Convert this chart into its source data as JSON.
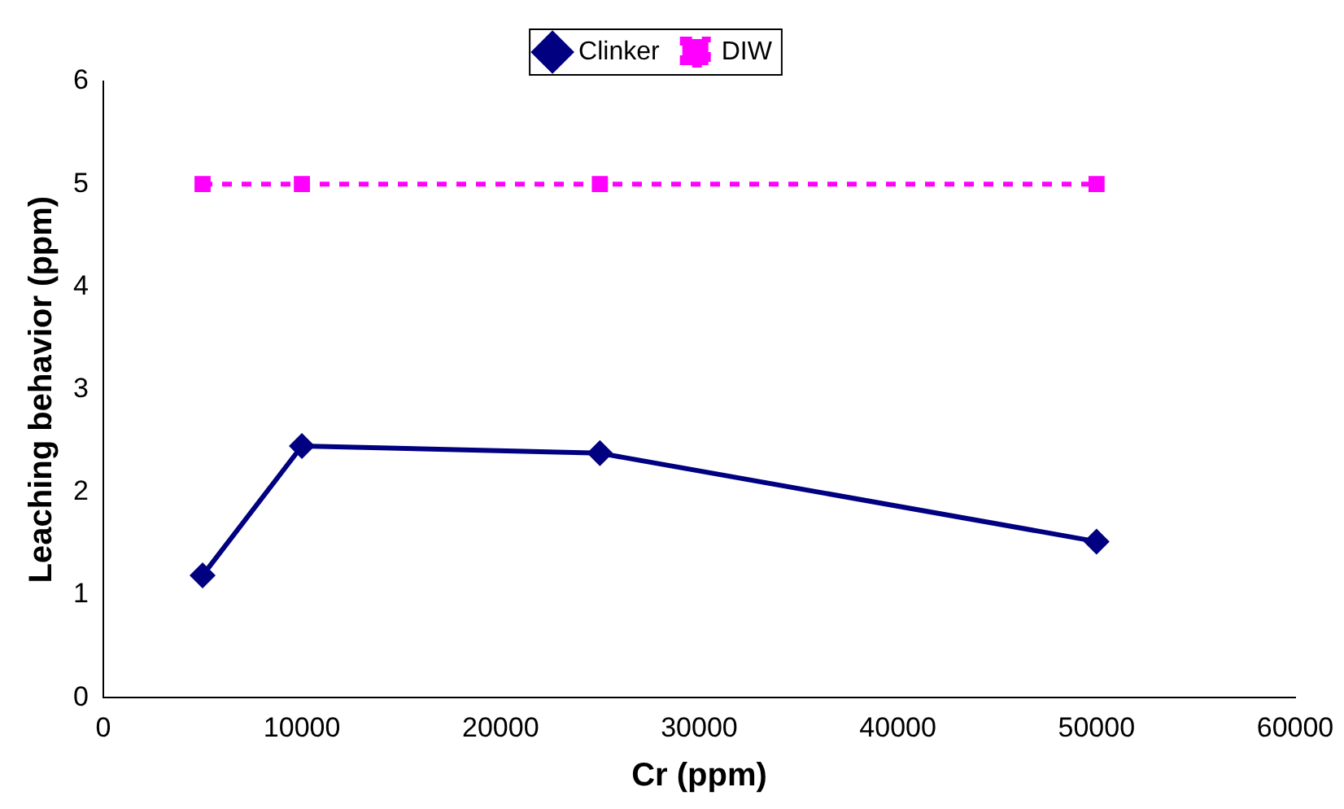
{
  "chart_data": {
    "type": "line",
    "xlabel": "Cr (ppm)",
    "ylabel": "Leaching behavior (ppm)",
    "x": [
      5000,
      10000,
      25000,
      50000
    ],
    "series": [
      {
        "name": "Clinker",
        "color": "#000080",
        "values": [
          1.19,
          2.45,
          2.38,
          1.52
        ],
        "marker": "diamond",
        "line_style": "solid"
      },
      {
        "name": "DIW",
        "color": "#ff00ff",
        "values": [
          5,
          5,
          5,
          5
        ],
        "marker": "square",
        "line_style": "dashed"
      }
    ],
    "xlim": [
      0,
      60000
    ],
    "xticks": [
      0,
      10000,
      20000,
      30000,
      40000,
      50000,
      60000
    ],
    "ylim": [
      0,
      6
    ],
    "yticks": [
      0,
      1,
      2,
      3,
      4,
      5,
      6
    ],
    "grid": false,
    "legend": "top"
  }
}
